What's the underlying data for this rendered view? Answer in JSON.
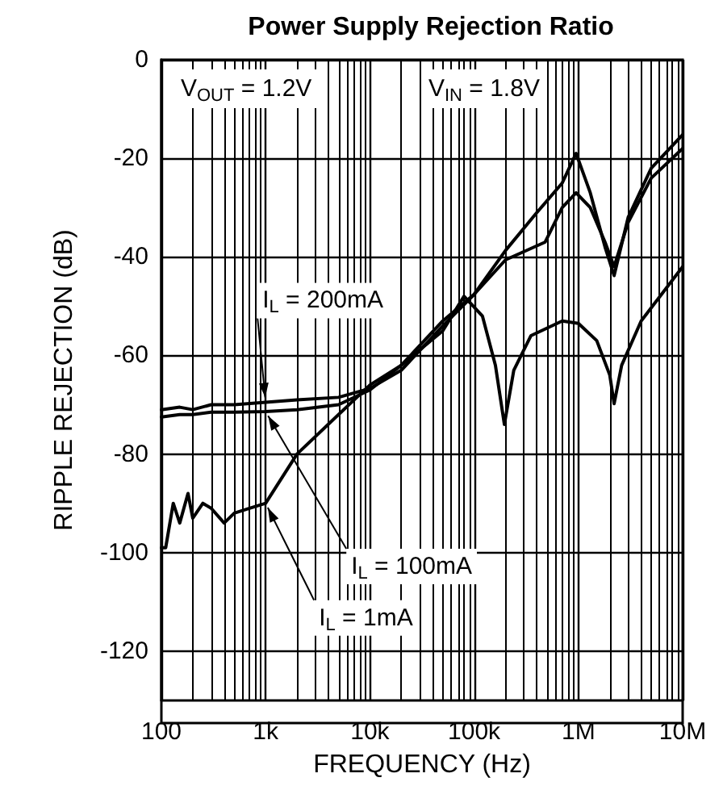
{
  "chart_data": {
    "type": "line",
    "title": "Power Supply Rejection Ratio",
    "xlabel": "FREQUENCY (Hz)",
    "ylabel": "RIPPLE REJECTION (dB)",
    "log": "x",
    "grid": true,
    "marker": "none",
    "line_style": "solid",
    "xlim": [
      100,
      10000000
    ],
    "xticks": [
      {
        "value": 100,
        "label": "100"
      },
      {
        "value": 1000,
        "label": "1k"
      },
      {
        "value": 10000,
        "label": "10k"
      },
      {
        "value": 100000,
        "label": "100k"
      },
      {
        "value": 1000000,
        "label": "1M"
      },
      {
        "value": 10000000,
        "label": "10M"
      }
    ],
    "ylim": [
      -130,
      0
    ],
    "yticks": [
      -120,
      -100,
      -80,
      -60,
      -40,
      -20,
      0
    ],
    "series": [
      {
        "name": "I$_{L}$ = 200mA",
        "color": "#000000",
        "x": [
          100,
          150,
          200,
          300,
          500,
          1000,
          2000,
          5000,
          10000,
          20000,
          50000,
          100000,
          200000,
          400000,
          700000,
          950000,
          1300000,
          1800000,
          2200000,
          3000000,
          5000000,
          10000000
        ],
        "values": [
          -71,
          -70.5,
          -71,
          -70,
          -70,
          -69.5,
          -69,
          -68.5,
          -66.7,
          -63,
          -54,
          -47.6,
          -38.7,
          -31,
          -25,
          -19,
          -27,
          -38,
          -43.8,
          -32,
          -22,
          -15.2
        ]
      },
      {
        "name": "I$_{L}$ = 100mA",
        "color": "#000000",
        "x": [
          100,
          150,
          200,
          300,
          500,
          1000,
          2000,
          5000,
          10000,
          20000,
          50000,
          100000,
          200000,
          480000,
          700000,
          950000,
          1300000,
          1800000,
          2200000,
          3000000,
          5000000,
          10000000
        ],
        "values": [
          -72.5,
          -72,
          -72,
          -71.5,
          -71.5,
          -71.4,
          -71,
          -70,
          -67,
          -62,
          -53,
          -47.6,
          -40.6,
          -37,
          -30,
          -27,
          -30,
          -37,
          -42,
          -33,
          -24,
          -18
        ]
      },
      {
        "name": "I$_{L}$ = 1mA",
        "color": "#000000",
        "x": [
          100,
          110,
          130,
          150,
          180,
          200,
          250,
          300,
          400,
          500,
          700,
          1000,
          2000,
          5000,
          10000,
          20000,
          50000,
          80000,
          120000,
          160000,
          195000,
          240000,
          350000,
          700000,
          1000000,
          1500000,
          2000000,
          2200000,
          2600000,
          4000000,
          10000000
        ],
        "values": [
          -99,
          -99,
          -90,
          -94,
          -88,
          -93,
          -90,
          -91,
          -94,
          -92,
          -91,
          -90,
          -80,
          -72,
          -66,
          -62,
          -55,
          -48,
          -52,
          -62,
          -74,
          -63,
          -56,
          -53,
          -53.5,
          -57,
          -64,
          -69.8,
          -62,
          -53,
          -42
        ]
      }
    ],
    "annotations": [
      "V$_{OUT}$ = 1.2V",
      "V$_{IN}$ = 1.8V"
    ]
  }
}
